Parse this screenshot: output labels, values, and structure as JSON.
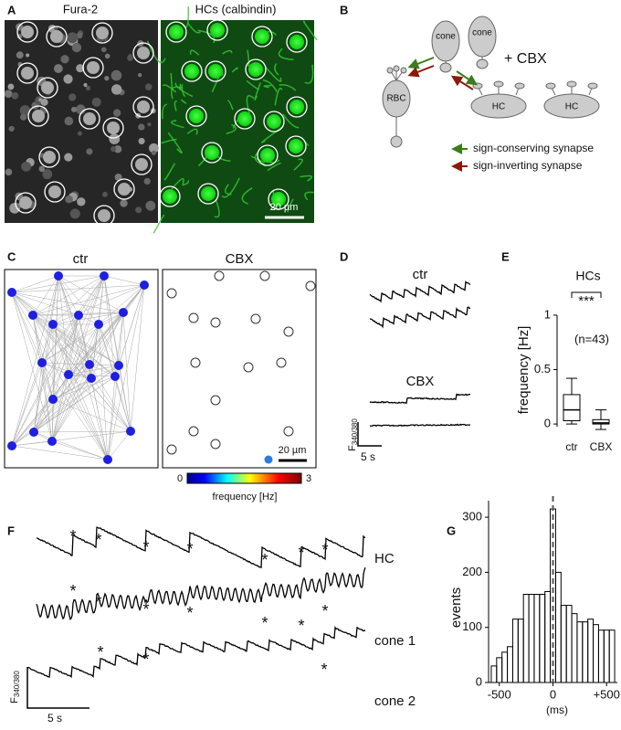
{
  "panels": {
    "A": {
      "label": "A",
      "titles": [
        "Fura-2",
        "HCs (calbindin)"
      ],
      "scale_bar": "20 µm"
    },
    "B": {
      "label": "B",
      "cells": {
        "cone": "cone",
        "rbc": "RBC",
        "hc": "HC"
      },
      "treatment": "+ CBX",
      "legend": [
        "sign-conserving synapse",
        "sign-inverting synapse"
      ]
    },
    "C": {
      "label": "C",
      "titles": [
        "ctr",
        "CBX"
      ],
      "scale_bar": "20 µm",
      "colorbar": {
        "lim": [
          0,
          3
        ],
        "ticks": [
          0,
          3
        ],
        "label": "frequency [Hz]"
      }
    },
    "D": {
      "label": "D",
      "conditions": [
        "ctr",
        "CBX"
      ],
      "y_scale": {
        "main": "F",
        "sub": "340/380"
      },
      "x_scale": "5 s"
    },
    "F": {
      "label": "F",
      "annotation": "*",
      "traces": [
        "HC",
        "cone 1",
        "cone 2"
      ],
      "y_scale": {
        "main": "F",
        "sub": "340/380"
      },
      "x_scale": "5 s"
    }
  },
  "chart_data": [
    {
      "type": "box",
      "panel": "E",
      "title": "HCs",
      "ylabel": "frequency [Hz]",
      "categories": [
        "ctr",
        "CBX"
      ],
      "boxes": [
        {
          "min": 0,
          "q1": 0.03,
          "median": 0.13,
          "q3": 0.27,
          "max": 0.42
        },
        {
          "min": -0.05,
          "q1": 0,
          "median": 0.01,
          "q3": 0.04,
          "max": 0.13
        }
      ],
      "annotations": [
        "***",
        "(n=43)"
      ],
      "ylim": [
        -0.1,
        1.05
      ],
      "yticks": [
        0,
        0.5,
        1
      ]
    },
    {
      "type": "histogram",
      "panel": "G",
      "xlabel": "(ms)",
      "ylabel": "events",
      "bins": [
        -575,
        -525,
        -475,
        -425,
        -375,
        -325,
        -275,
        -225,
        -175,
        -125,
        -75,
        -25,
        25,
        75,
        125,
        175,
        225,
        275,
        325,
        375,
        425,
        475,
        525,
        575
      ],
      "counts": [
        30,
        45,
        55,
        65,
        115,
        115,
        160,
        160,
        160,
        160,
        165,
        315,
        200,
        140,
        140,
        125,
        110,
        110,
        115,
        105,
        95,
        95,
        95
      ],
      "xlim": [
        -600,
        600
      ],
      "ylim": [
        0,
        330
      ],
      "xticks": [
        -500,
        0,
        {
          "value": 500,
          "label": "+500"
        }
      ],
      "yticks": [
        0,
        100,
        200,
        300
      ]
    }
  ]
}
